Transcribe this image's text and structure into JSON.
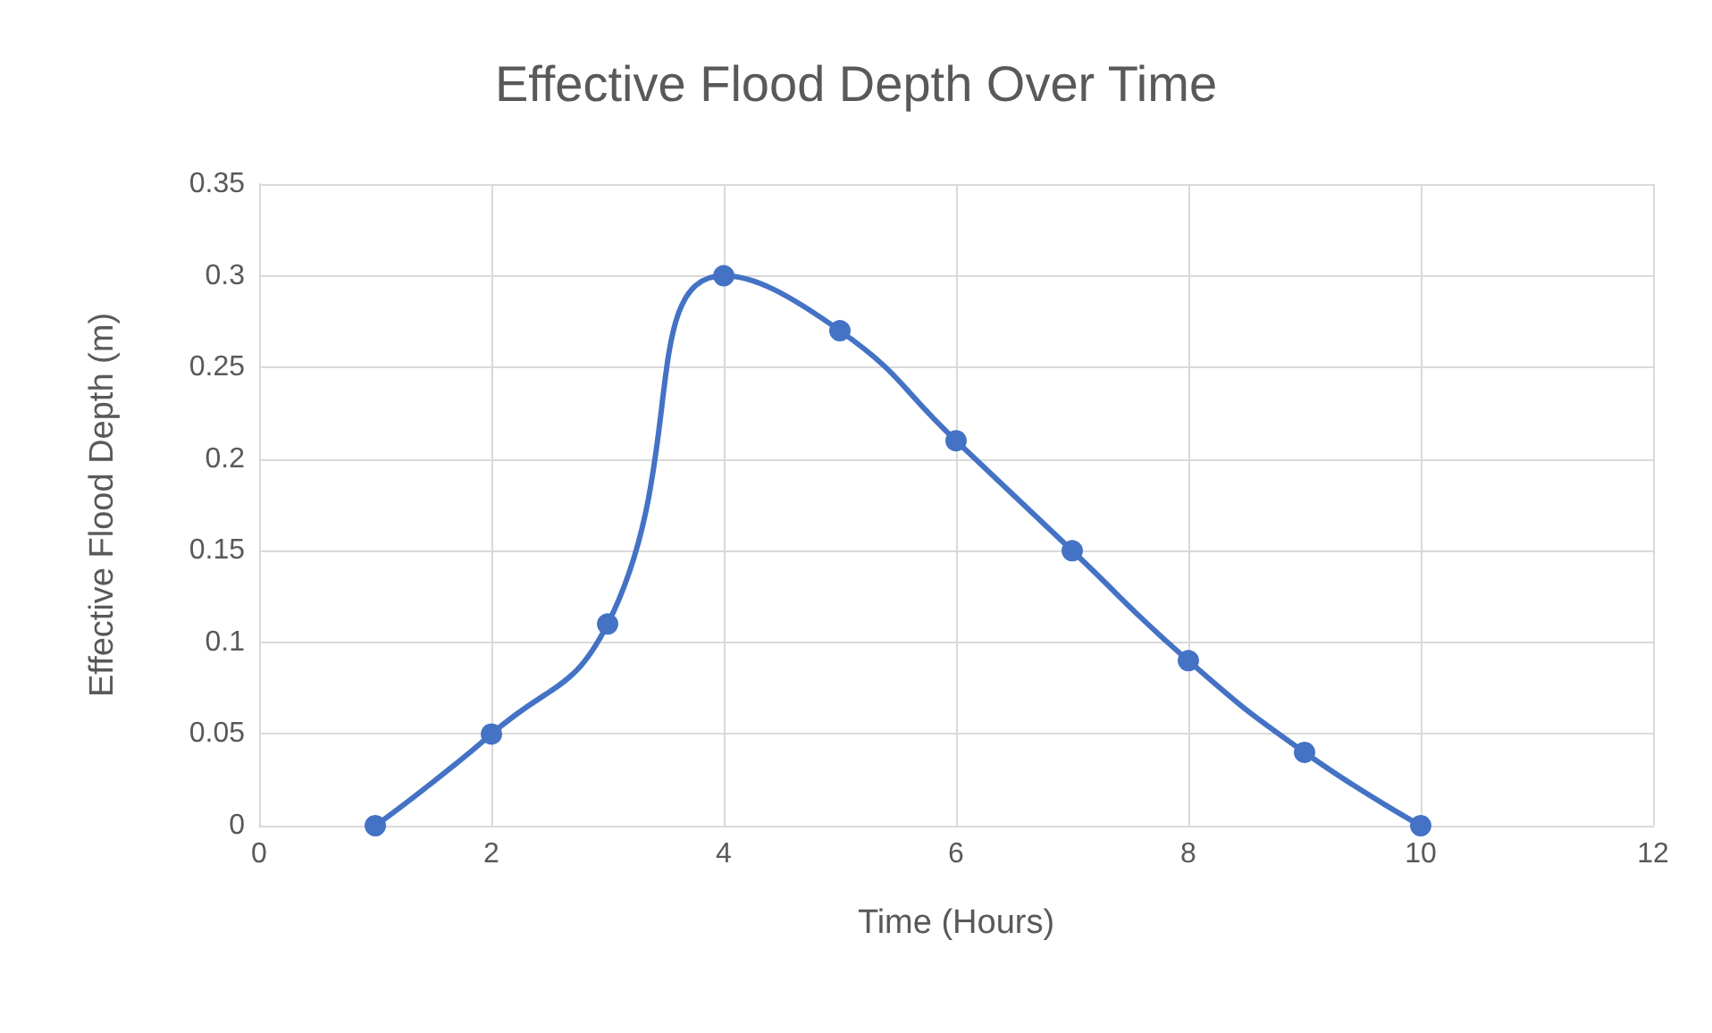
{
  "chart_data": {
    "type": "line",
    "title": "Effective Flood Depth Over Time",
    "xlabel": "Time (Hours)",
    "ylabel": "Effective Flood Depth (m)",
    "x": [
      1,
      2,
      3,
      4,
      5,
      6,
      7,
      8,
      9,
      10
    ],
    "series": [
      {
        "color": "#4472c4",
        "values": [
          0,
          0.05,
          0.11,
          0.3,
          0.27,
          0.21,
          0.15,
          0.09,
          0.04,
          0
        ]
      }
    ],
    "xlim": [
      0,
      12
    ],
    "xticks": [
      0,
      2,
      4,
      6,
      8,
      10,
      12
    ],
    "ylim": [
      0,
      0.35
    ],
    "yticks": [
      0,
      0.05,
      0.1,
      0.15,
      0.2,
      0.25,
      0.3,
      0.35
    ],
    "grid": true,
    "marker": "circle",
    "line_style": "solid"
  }
}
